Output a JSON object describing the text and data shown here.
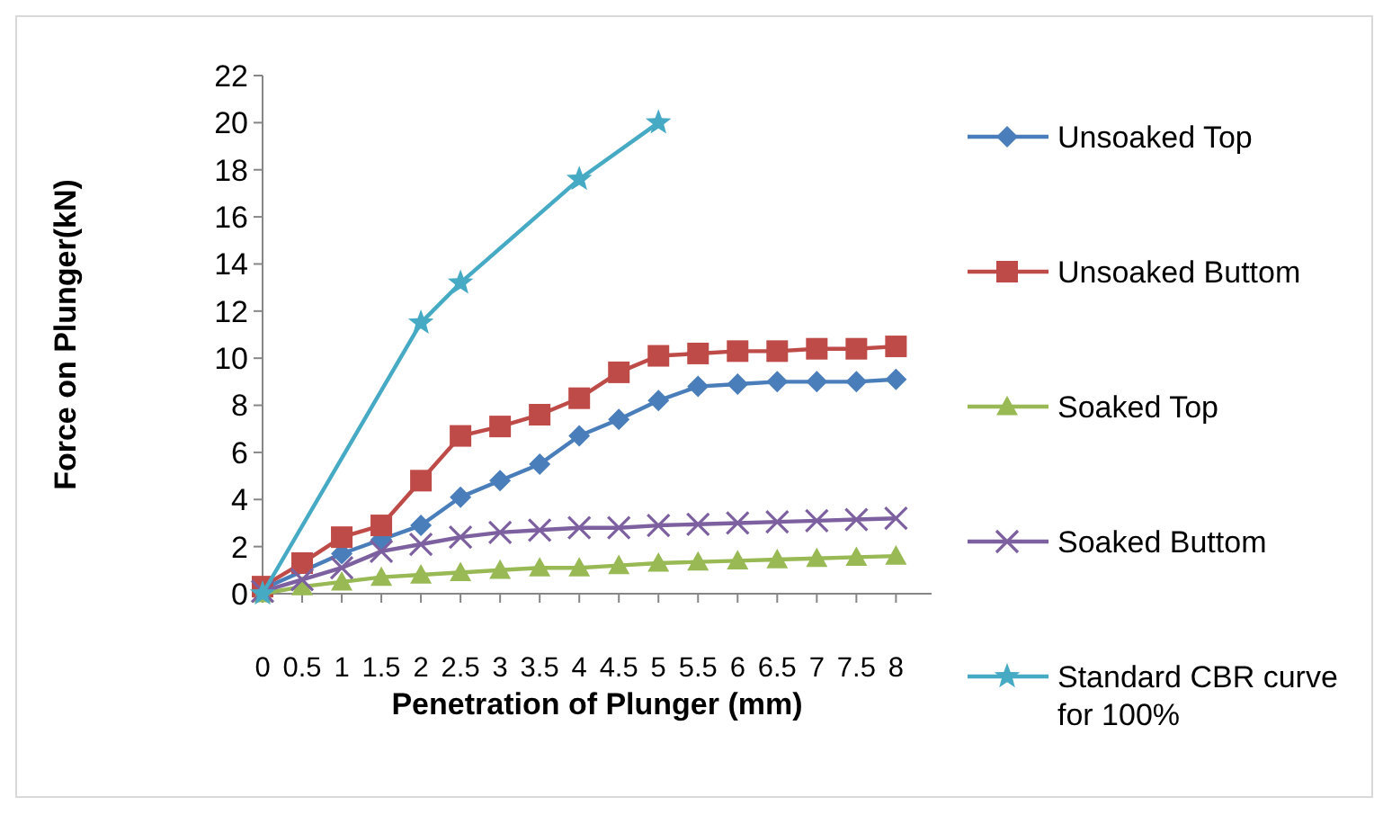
{
  "chart_data": {
    "type": "line",
    "xlabel": "Penetration of Plunger (mm)",
    "ylabel": "Force on Plunger(kN)",
    "categories": [
      "0",
      "0.5",
      "1",
      "1.5",
      "2",
      "2.5",
      "3",
      "3.5",
      "4",
      "4.5",
      "5",
      "5.5",
      "6",
      "6.5",
      "7",
      "7.5",
      "8"
    ],
    "ylim": [
      0,
      22
    ],
    "yticks": [
      0,
      2,
      4,
      6,
      8,
      10,
      12,
      14,
      16,
      18,
      20,
      22
    ],
    "grid": false,
    "legend": "right",
    "series": [
      {
        "name": "Unsoaked Top",
        "color": "#4a7ebb",
        "marker": "diamond",
        "values": [
          0.2,
          null,
          1.7,
          2.3,
          2.9,
          4.1,
          4.8,
          5.5,
          6.7,
          7.4,
          8.2,
          8.8,
          8.9,
          9.0,
          9.0,
          9.0,
          9.1
        ]
      },
      {
        "name": "Unsoaked Buttom",
        "color": "#be4b48",
        "marker": "square",
        "values": [
          0.3,
          1.3,
          2.4,
          2.9,
          4.8,
          6.7,
          7.1,
          7.6,
          8.3,
          9.4,
          10.1,
          10.2,
          10.3,
          10.3,
          10.4,
          10.4,
          10.5
        ]
      },
      {
        "name": "Soaked Top",
        "color": "#98b954",
        "marker": "triangle",
        "values": [
          0,
          0.3,
          0.5,
          0.7,
          0.8,
          0.9,
          1.0,
          1.1,
          1.1,
          1.2,
          1.3,
          1.35,
          1.4,
          1.45,
          1.5,
          1.55,
          1.6
        ]
      },
      {
        "name": "Soaked Buttom",
        "color": "#7d60a0",
        "marker": "cross",
        "values": [
          0.1,
          0.6,
          1.1,
          1.8,
          2.1,
          2.4,
          2.6,
          2.7,
          2.8,
          2.8,
          2.9,
          2.95,
          3.0,
          3.05,
          3.1,
          3.15,
          3.2
        ]
      },
      {
        "name": "Standard CBR curve for 100%",
        "color": "#46aac5",
        "marker": "star",
        "values": [
          0,
          null,
          null,
          null,
          11.5,
          13.2,
          null,
          null,
          17.6,
          null,
          20,
          null,
          null,
          null,
          null,
          null,
          null
        ]
      }
    ]
  }
}
